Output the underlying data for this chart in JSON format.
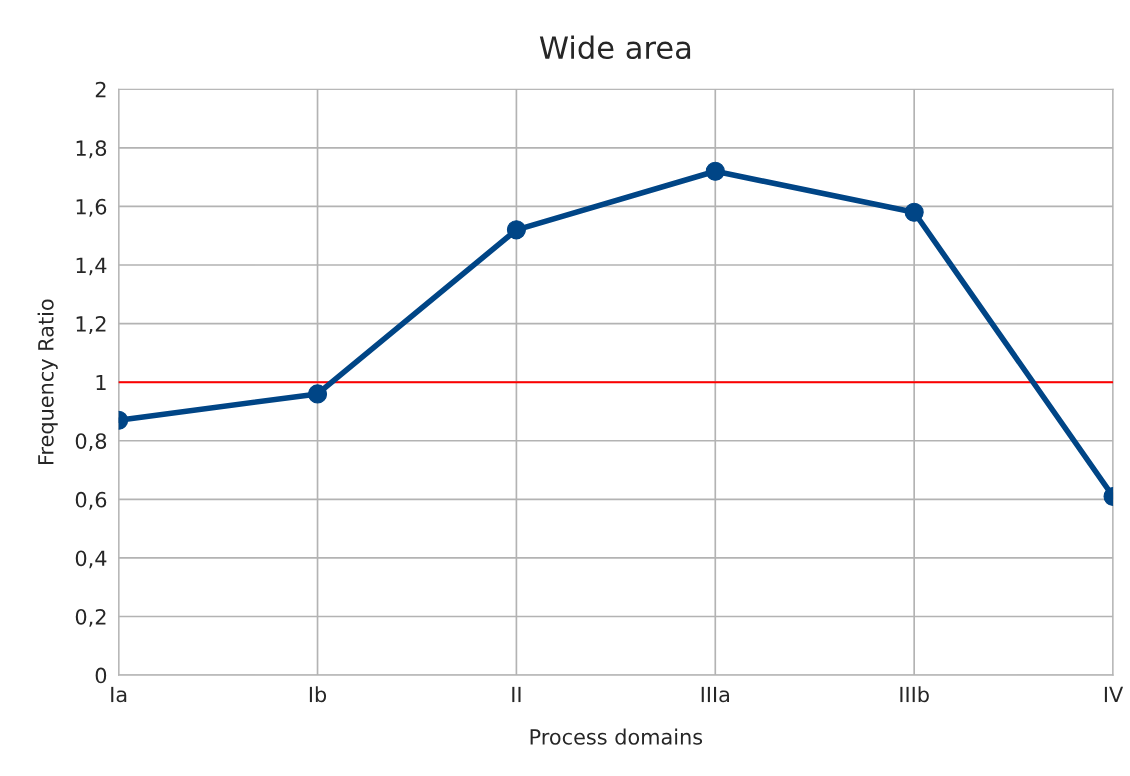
{
  "chart_data": {
    "type": "line",
    "title": "Wide area",
    "xlabel": "Process domains",
    "ylabel": "Frequency Ratio",
    "categories": [
      "Ia",
      "Ib",
      "II",
      "IIIa",
      "IIIb",
      "IV"
    ],
    "series": [
      {
        "color": "#004586",
        "values": [
          0.87,
          0.96,
          1.52,
          1.72,
          1.58,
          0.61
        ]
      }
    ],
    "ylim": [
      0,
      2
    ],
    "yticks": [
      0,
      {
        "value": 0.2,
        "label": "0,2"
      },
      {
        "value": 0.4,
        "label": "0,4"
      },
      {
        "value": 0.6,
        "label": "0,6"
      },
      {
        "value": 0.8,
        "label": "0,8"
      },
      1,
      {
        "value": 1.2,
        "label": "1,2"
      },
      {
        "value": 1.4,
        "label": "1,4"
      },
      {
        "value": 1.6,
        "label": "1,6"
      },
      {
        "value": 1.8,
        "label": "1,8"
      },
      2
    ],
    "ref_lines": [
      {
        "axis": "y",
        "value": 1,
        "color": "#ff0000"
      }
    ],
    "grid": true,
    "marker": "circle",
    "line_style": "solid",
    "legend": false
  }
}
